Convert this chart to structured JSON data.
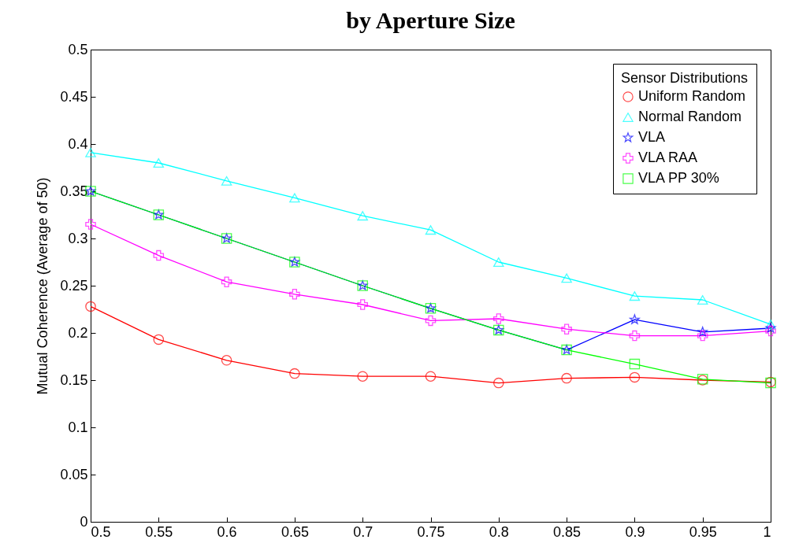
{
  "chart_data": {
    "type": "line",
    "title": "by Aperture Size",
    "ylabel": "Mutual Coherence (Average of 50)",
    "legend_title": "Sensor Distributions",
    "legend": "top right",
    "grid": false,
    "x": [
      0.5,
      0.55,
      0.6,
      0.65,
      0.7,
      0.75,
      0.8,
      0.85,
      0.9,
      0.95,
      1
    ],
    "xlim": [
      0.5,
      1
    ],
    "xticks": [
      0.5,
      0.55,
      0.6,
      0.65,
      0.7,
      0.75,
      0.8,
      0.85,
      0.9,
      0.95,
      1
    ],
    "ylim": [
      0,
      0.5
    ],
    "yticks": [
      0,
      0.05,
      0.1,
      0.15,
      0.2,
      0.25,
      0.3,
      0.35,
      0.4,
      0.45,
      0.5
    ],
    "series": [
      {
        "name": "Uniform Random",
        "color": "#ff0000",
        "marker": "circle",
        "values": [
          0.228,
          0.193,
          0.171,
          0.157,
          0.154,
          0.154,
          0.147,
          0.152,
          0.153,
          0.15,
          0.148
        ]
      },
      {
        "name": "Normal Random",
        "color": "#00ffff",
        "marker": "triangle",
        "values": [
          0.391,
          0.38,
          0.361,
          0.343,
          0.324,
          0.309,
          0.275,
          0.258,
          0.239,
          0.235,
          0.209
        ]
      },
      {
        "name": "VLA",
        "color": "#0000ff",
        "marker": "star",
        "values": [
          0.35,
          0.325,
          0.3,
          0.275,
          0.25,
          0.226,
          0.203,
          0.182,
          0.214,
          0.201,
          0.205
        ]
      },
      {
        "name": "VLA RAA",
        "color": "#ff00ff",
        "marker": "cross",
        "values": [
          0.315,
          0.282,
          0.254,
          0.241,
          0.23,
          0.213,
          0.215,
          0.204,
          0.197,
          0.197,
          0.202
        ]
      },
      {
        "name": "VLA PP 30%",
        "color": "#00ff00",
        "marker": "square",
        "values": [
          0.35,
          0.325,
          0.3,
          0.275,
          0.25,
          0.226,
          0.203,
          0.182,
          0.167,
          0.151,
          0.147
        ]
      }
    ]
  }
}
